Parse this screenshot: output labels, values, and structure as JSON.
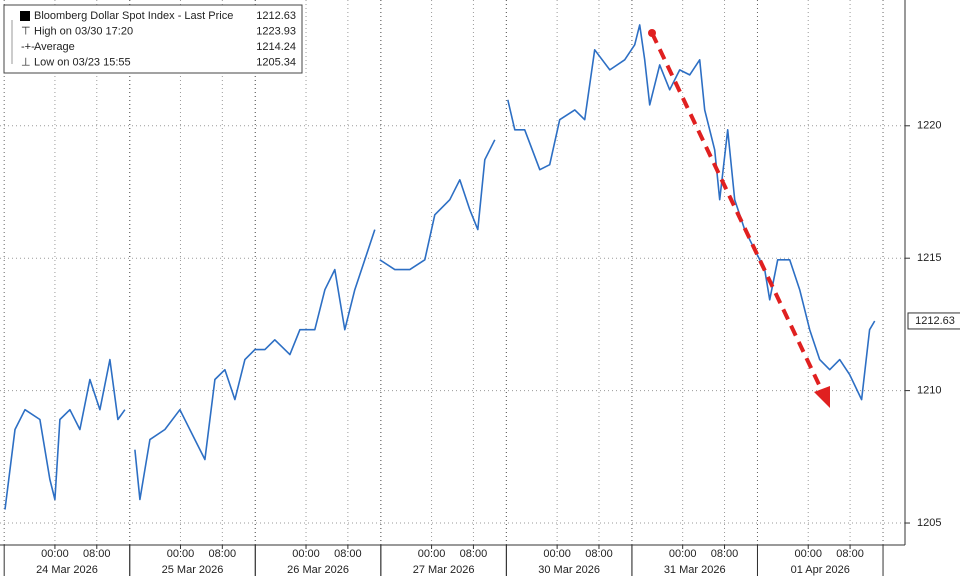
{
  "chart_data": {
    "type": "line",
    "legend": [
      {
        "label": "Bloomberg Dollar Spot Index - Last Price",
        "value": 1212.63
      },
      {
        "label": "High on 03/30 17:20",
        "value": 1223.93
      },
      {
        "label": "Average",
        "value": 1214.24
      },
      {
        "label": "Low on 03/23 15:55",
        "value": 1205.34
      }
    ],
    "series": [
      {
        "name": "Bloomberg Dollar Spot Index - Last Price",
        "color": "#2d6fc4",
        "x": [
          -9.55,
          -7.64,
          -5.73,
          -2.87,
          -0.96,
          0,
          0.96,
          2.87,
          4.78,
          6.69,
          8.6,
          10.51,
          12.04,
          13.38,
          14.3,
          15.29,
          16.24,
          18.15,
          21.02,
          23.89,
          26.75,
          28.66,
          30.58,
          32.49,
          34.4,
          36.31,
          38.22,
          40.13,
          42.04,
          44.91,
          46.82,
          49.68,
          51.6,
          53.51,
          55.42,
          57.33,
          59.24,
          61.15,
          61.6,
          62.11,
          64.97,
          67.84,
          70.71,
          72.62,
          75.48,
          77.39,
          79.3,
          80.83,
          82.17,
          84.08,
          85.3,
          86.57,
          87.9,
          89.81,
          92.68,
          94.59,
          96.5,
          99.37,
          101.28,
          103.19,
          106.06,
          108.92,
          110.83,
          111.79,
          112.75,
          113.7,
          115.61,
          117.52,
          119.43,
          121.35,
          123.26,
          124.21,
          126.12,
          127.08,
          128.61,
          129.94,
          131.86,
          133.77,
          135.68,
          136.63,
          138.16,
          140.46,
          142.37,
          144.28,
          146.19,
          148.1,
          150.01,
          151.92,
          154.21,
          155.74,
          156.7
        ],
        "values": [
          1205.51,
          1208.53,
          1209.28,
          1208.91,
          1206.64,
          1205.89,
          1208.91,
          1209.28,
          1208.53,
          1210.42,
          1209.28,
          1211.17,
          1208.91,
          1209.28,
          null,
          1207.77,
          1205.89,
          1208.15,
          1208.53,
          1209.28,
          1208.15,
          1207.4,
          1210.42,
          1210.79,
          1209.66,
          1211.17,
          1211.55,
          1211.55,
          1211.92,
          1211.36,
          1212.3,
          1212.3,
          1213.81,
          1214.57,
          1212.3,
          1213.81,
          1214.94,
          1216.08,
          null,
          1214.94,
          1214.57,
          1214.57,
          1214.94,
          1216.64,
          1217.21,
          1217.96,
          1216.83,
          1216.08,
          1218.72,
          1219.47,
          null,
          1220.98,
          1219.85,
          1219.85,
          1218.34,
          1218.53,
          1220.23,
          1220.6,
          1220.23,
          1222.87,
          1222.11,
          1222.49,
          1223.06,
          1223.81,
          1222.49,
          1220.79,
          1222.3,
          1221.36,
          1222.11,
          1221.92,
          1222.49,
          1220.6,
          1219.09,
          1217.21,
          1219.85,
          1217.21,
          1216.08,
          1215.32,
          1214.57,
          1213.43,
          1214.94,
          1214.94,
          1213.81,
          1212.3,
          1211.17,
          1210.79,
          1211.17,
          1210.6,
          1209.66,
          1212.3,
          1212.63
        ]
      }
    ],
    "last_price_tag": 1212.63,
    "xlim": [
      -10.5,
      162.5
    ],
    "ylim": [
      1204.17,
      1224.75
    ],
    "yticks": [
      1205,
      1210,
      1215,
      1220
    ],
    "xticks": [
      {
        "value": 0,
        "label": "00:00"
      },
      {
        "value": 8,
        "label": "08:00"
      },
      {
        "value": 24,
        "label": "00:00"
      },
      {
        "value": 32,
        "label": "08:00"
      },
      {
        "value": 48,
        "label": "00:00"
      },
      {
        "value": 56,
        "label": "08:00"
      },
      {
        "value": 72,
        "label": "00:00"
      },
      {
        "value": 80,
        "label": "08:00"
      },
      {
        "value": 96,
        "label": "00:00"
      },
      {
        "value": 104,
        "label": "08:00"
      },
      {
        "value": 120,
        "label": "00:00"
      },
      {
        "value": 128,
        "label": "08:00"
      },
      {
        "value": 144,
        "label": "00:00"
      },
      {
        "value": 152,
        "label": "08:00"
      }
    ],
    "xgroups": [
      {
        "value": 0,
        "label": "24 Mar 2026"
      },
      {
        "value": 24,
        "label": "25 Mar 2026"
      },
      {
        "value": 48,
        "label": "26 Mar 2026"
      },
      {
        "value": 72,
        "label": "27 Mar 2026"
      },
      {
        "value": 96,
        "label": "30 Mar 2026"
      },
      {
        "value": 120,
        "label": "31 Mar 2026"
      },
      {
        "value": 144,
        "label": "01 Apr 2026"
      }
    ],
    "grid": true
  }
}
